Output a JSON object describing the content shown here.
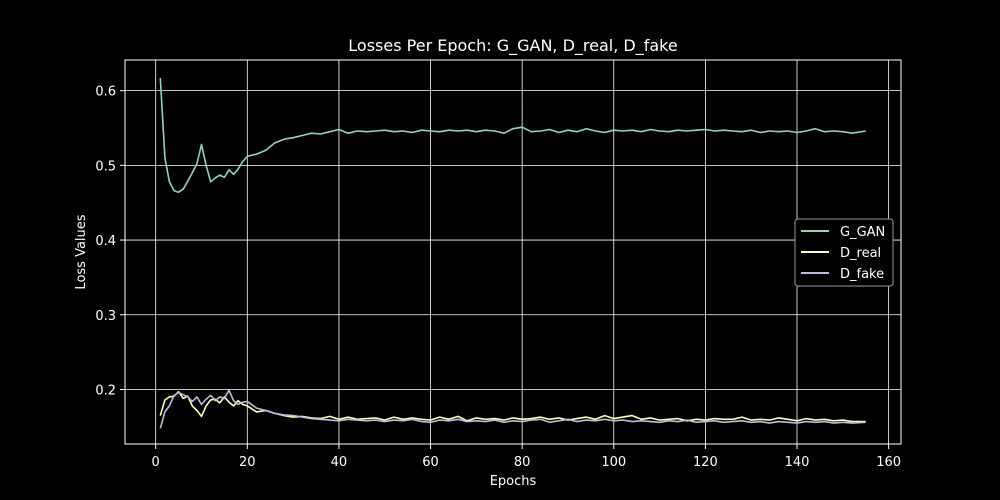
{
  "chart_data": {
    "type": "line",
    "title": "Losses Per Epoch: G_GAN, D_real, D_fake",
    "xlabel": "Epochs",
    "ylabel": "Loss Values",
    "xlim": [
      -6.7,
      162.7
    ],
    "ylim": [
      0.127,
      0.641
    ],
    "xticks": [
      0,
      20,
      40,
      60,
      80,
      100,
      120,
      140,
      160
    ],
    "yticks": [
      0.2,
      0.3,
      0.4,
      0.5,
      0.6
    ],
    "xtick_labels": [
      "0",
      "20",
      "40",
      "60",
      "80",
      "100",
      "120",
      "140",
      "160"
    ],
    "ytick_labels": [
      "0.2",
      "0.3",
      "0.4",
      "0.5",
      "0.6"
    ],
    "grid": true,
    "legend_position": "center-right",
    "background": "#000000",
    "series": [
      {
        "name": "G_GAN",
        "color": "#8dd3c7",
        "x": [
          1,
          2,
          3,
          4,
          5,
          6,
          7,
          8,
          9,
          10,
          11,
          12,
          13,
          14,
          15,
          16,
          17,
          18,
          19,
          20,
          22,
          24,
          26,
          28,
          30,
          32,
          34,
          36,
          38,
          40,
          42,
          44,
          46,
          48,
          50,
          52,
          54,
          56,
          58,
          60,
          62,
          64,
          66,
          68,
          70,
          72,
          74,
          76,
          78,
          80,
          82,
          84,
          86,
          88,
          90,
          92,
          94,
          96,
          98,
          100,
          102,
          104,
          106,
          108,
          110,
          112,
          114,
          116,
          118,
          120,
          122,
          124,
          126,
          128,
          130,
          132,
          134,
          136,
          138,
          140,
          142,
          144,
          146,
          148,
          150,
          152,
          155
        ],
        "y": [
          0.617,
          0.51,
          0.478,
          0.466,
          0.464,
          0.468,
          0.479,
          0.49,
          0.502,
          0.528,
          0.5,
          0.478,
          0.483,
          0.487,
          0.484,
          0.494,
          0.488,
          0.495,
          0.505,
          0.512,
          0.515,
          0.52,
          0.53,
          0.535,
          0.537,
          0.54,
          0.543,
          0.542,
          0.545,
          0.548,
          0.543,
          0.546,
          0.545,
          0.546,
          0.547,
          0.545,
          0.546,
          0.544,
          0.547,
          0.546,
          0.545,
          0.547,
          0.546,
          0.547,
          0.545,
          0.547,
          0.546,
          0.543,
          0.549,
          0.551,
          0.545,
          0.546,
          0.548,
          0.544,
          0.547,
          0.545,
          0.549,
          0.546,
          0.544,
          0.547,
          0.546,
          0.547,
          0.545,
          0.548,
          0.546,
          0.545,
          0.547,
          0.546,
          0.547,
          0.548,
          0.546,
          0.547,
          0.546,
          0.545,
          0.547,
          0.544,
          0.546,
          0.545,
          0.546,
          0.544,
          0.546,
          0.549,
          0.545,
          0.546,
          0.545,
          0.543,
          0.546
        ]
      },
      {
        "name": "D_real",
        "color": "#ffffb3",
        "x": [
          1,
          2,
          3,
          4,
          5,
          6,
          7,
          8,
          9,
          10,
          11,
          12,
          13,
          14,
          15,
          16,
          17,
          18,
          19,
          20,
          22,
          24,
          26,
          28,
          30,
          32,
          34,
          36,
          38,
          40,
          42,
          44,
          46,
          48,
          50,
          52,
          54,
          56,
          58,
          60,
          62,
          64,
          66,
          68,
          70,
          72,
          74,
          76,
          78,
          80,
          82,
          84,
          86,
          88,
          90,
          92,
          94,
          96,
          98,
          100,
          102,
          104,
          106,
          108,
          110,
          112,
          114,
          116,
          118,
          120,
          122,
          124,
          126,
          128,
          130,
          132,
          134,
          136,
          138,
          140,
          142,
          144,
          146,
          148,
          150,
          152,
          155
        ],
        "y": [
          0.165,
          0.186,
          0.19,
          0.191,
          0.197,
          0.188,
          0.191,
          0.178,
          0.172,
          0.164,
          0.178,
          0.186,
          0.187,
          0.182,
          0.19,
          0.183,
          0.178,
          0.185,
          0.18,
          0.178,
          0.17,
          0.172,
          0.168,
          0.165,
          0.163,
          0.164,
          0.162,
          0.161,
          0.164,
          0.16,
          0.163,
          0.16,
          0.161,
          0.162,
          0.159,
          0.163,
          0.16,
          0.162,
          0.16,
          0.159,
          0.163,
          0.16,
          0.164,
          0.158,
          0.162,
          0.16,
          0.161,
          0.159,
          0.162,
          0.16,
          0.161,
          0.163,
          0.16,
          0.162,
          0.159,
          0.161,
          0.163,
          0.16,
          0.165,
          0.161,
          0.163,
          0.165,
          0.16,
          0.162,
          0.159,
          0.16,
          0.161,
          0.158,
          0.16,
          0.159,
          0.161,
          0.16,
          0.16,
          0.163,
          0.159,
          0.16,
          0.159,
          0.162,
          0.16,
          0.158,
          0.161,
          0.159,
          0.16,
          0.158,
          0.159,
          0.157,
          0.157
        ]
      },
      {
        "name": "D_fake",
        "color": "#bebada",
        "x": [
          1,
          2,
          3,
          4,
          5,
          6,
          7,
          8,
          9,
          10,
          11,
          12,
          13,
          14,
          15,
          16,
          17,
          18,
          19,
          20,
          22,
          24,
          26,
          28,
          30,
          32,
          34,
          36,
          38,
          40,
          42,
          44,
          46,
          48,
          50,
          52,
          54,
          56,
          58,
          60,
          62,
          64,
          66,
          68,
          70,
          72,
          74,
          76,
          78,
          80,
          82,
          84,
          86,
          88,
          90,
          92,
          94,
          96,
          98,
          100,
          102,
          104,
          106,
          108,
          110,
          112,
          114,
          116,
          118,
          120,
          122,
          124,
          126,
          128,
          130,
          132,
          134,
          136,
          138,
          140,
          142,
          144,
          146,
          148,
          150,
          152,
          155
        ],
        "y": [
          0.148,
          0.17,
          0.178,
          0.192,
          0.196,
          0.193,
          0.19,
          0.184,
          0.19,
          0.18,
          0.187,
          0.192,
          0.185,
          0.19,
          0.188,
          0.199,
          0.185,
          0.18,
          0.183,
          0.184,
          0.175,
          0.172,
          0.168,
          0.166,
          0.165,
          0.163,
          0.161,
          0.16,
          0.159,
          0.158,
          0.16,
          0.159,
          0.158,
          0.159,
          0.157,
          0.159,
          0.158,
          0.16,
          0.157,
          0.156,
          0.159,
          0.158,
          0.16,
          0.157,
          0.158,
          0.157,
          0.159,
          0.156,
          0.158,
          0.157,
          0.159,
          0.16,
          0.156,
          0.158,
          0.16,
          0.157,
          0.159,
          0.158,
          0.16,
          0.158,
          0.159,
          0.157,
          0.158,
          0.157,
          0.156,
          0.158,
          0.157,
          0.159,
          0.156,
          0.157,
          0.158,
          0.156,
          0.157,
          0.158,
          0.156,
          0.157,
          0.155,
          0.157,
          0.156,
          0.155,
          0.157,
          0.156,
          0.157,
          0.155,
          0.156,
          0.155,
          0.156
        ]
      }
    ]
  }
}
